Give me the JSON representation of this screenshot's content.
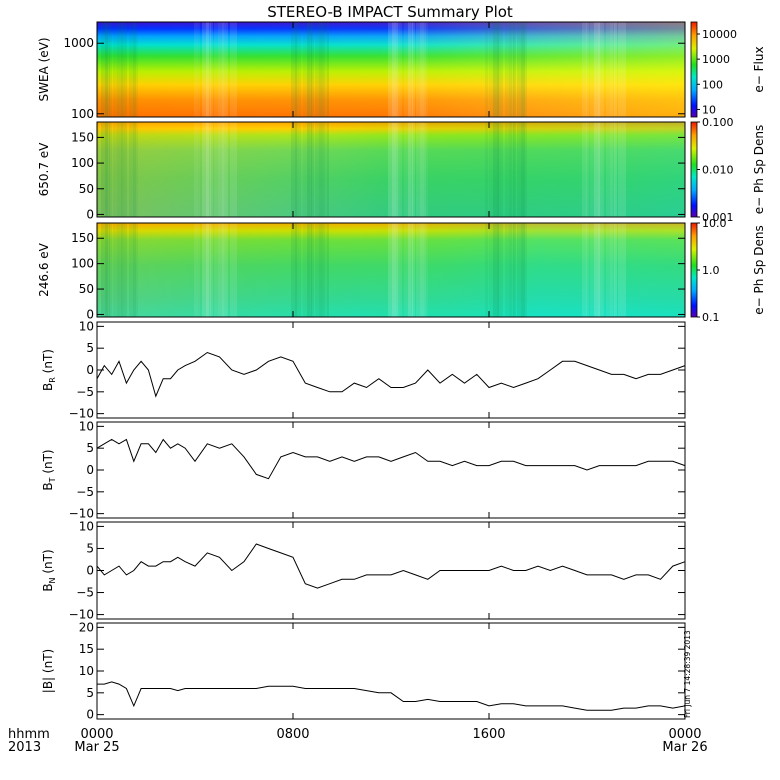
{
  "title": "STEREO-B IMPACT Summary Plot",
  "timestamp": "Fri Jun  7 14:28:39 2013",
  "x_axis": {
    "row1_label": "hhmm",
    "row2_label": "2013",
    "ticks": [
      {
        "hour": 0,
        "label": "0000",
        "date": "Mar 25"
      },
      {
        "hour": 8,
        "label": "0800",
        "date": ""
      },
      {
        "hour": 16,
        "label": "1600",
        "date": ""
      },
      {
        "hour": 24,
        "label": "0000",
        "date": "Mar 26"
      }
    ],
    "range_hours": [
      0,
      24
    ]
  },
  "chart_data": [
    {
      "type": "heatmap",
      "id": "swea",
      "ylabel": "SWEA (eV)",
      "yscale": "log",
      "ylim": [
        90,
        2000
      ],
      "yticks": [
        {
          "v": 100,
          "label": "100"
        },
        {
          "v": 1000,
          "label": "1000"
        }
      ],
      "colorbar": {
        "label": "e− Flux",
        "scale": "log",
        "range": [
          5,
          30000
        ],
        "ticks": [
          {
            "v": 10,
            "label": "10"
          },
          {
            "v": 100,
            "label": "100"
          },
          {
            "v": 1000,
            "label": "1000"
          },
          {
            "v": 10000,
            "label": "10000"
          }
        ]
      }
    },
    {
      "type": "heatmap",
      "id": "pad650",
      "ylabel": "650.7 eV",
      "ylim": [
        -5,
        180
      ],
      "yticks": [
        {
          "v": 0,
          "label": "0"
        },
        {
          "v": 50,
          "label": "50"
        },
        {
          "v": 100,
          "label": "100"
        },
        {
          "v": 150,
          "label": "150"
        }
      ],
      "colorbar": {
        "label": "e− Ph Sp Dens",
        "scale": "log",
        "range": [
          0.001,
          0.1
        ],
        "ticks": [
          {
            "v": 0.001,
            "label": "0.001"
          },
          {
            "v": 0.01,
            "label": "0.010"
          },
          {
            "v": 0.1,
            "label": "0.100"
          }
        ]
      }
    },
    {
      "type": "heatmap",
      "id": "pad246",
      "ylabel": "246.6 eV",
      "ylim": [
        -5,
        180
      ],
      "yticks": [
        {
          "v": 0,
          "label": "0"
        },
        {
          "v": 50,
          "label": "50"
        },
        {
          "v": 100,
          "label": "100"
        },
        {
          "v": 150,
          "label": "150"
        }
      ],
      "colorbar": {
        "label": "e− Ph Sp Dens",
        "scale": "log",
        "range": [
          0.1,
          10
        ],
        "ticks": [
          {
            "v": 0.1,
            "label": "0.1"
          },
          {
            "v": 1,
            "label": "1.0"
          },
          {
            "v": 10,
            "label": "10.0"
          }
        ]
      }
    },
    {
      "type": "line",
      "id": "br",
      "ylabel_main": "B",
      "ylabel_sub": "R",
      "ylabel_unit": "(nT)",
      "ylim": [
        -11,
        11
      ],
      "yticks": [
        {
          "v": -10,
          "label": "−10"
        },
        {
          "v": -5,
          "label": "−5"
        },
        {
          "v": 0,
          "label": "0"
        },
        {
          "v": 5,
          "label": "5"
        },
        {
          "v": 10,
          "label": "10"
        }
      ],
      "x": [
        0,
        0.3,
        0.6,
        0.9,
        1.2,
        1.5,
        1.8,
        2.1,
        2.4,
        2.7,
        3,
        3.3,
        3.6,
        4,
        4.5,
        5,
        5.5,
        6,
        6.5,
        7,
        7.5,
        8,
        8.5,
        9,
        9.5,
        10,
        10.5,
        11,
        11.5,
        12,
        12.5,
        13,
        13.5,
        14,
        14.5,
        15,
        15.5,
        16,
        16.5,
        17,
        17.5,
        18,
        18.5,
        19,
        19.5,
        20,
        20.5,
        21,
        21.5,
        22,
        22.5,
        23,
        23.5,
        24
      ],
      "y": [
        -2,
        1,
        -1,
        2,
        -3,
        0,
        2,
        0,
        -6,
        -2,
        -2,
        0,
        1,
        2,
        4,
        3,
        0,
        -1,
        0,
        2,
        3,
        2,
        -3,
        -4,
        -5,
        -5,
        -3,
        -4,
        -2,
        -4,
        -4,
        -3,
        0,
        -3,
        -1,
        -3,
        -1,
        -4,
        -3,
        -4,
        -3,
        -2,
        0,
        2,
        2,
        1,
        0,
        -1,
        -1,
        -2,
        -1,
        -1,
        0,
        1
      ]
    },
    {
      "type": "line",
      "id": "bt",
      "ylabel_main": "B",
      "ylabel_sub": "T",
      "ylabel_unit": "(nT)",
      "ylim": [
        -11,
        11
      ],
      "yticks": [
        {
          "v": -10,
          "label": "−10"
        },
        {
          "v": -5,
          "label": "−5"
        },
        {
          "v": 0,
          "label": "0"
        },
        {
          "v": 5,
          "label": "5"
        },
        {
          "v": 10,
          "label": "10"
        }
      ],
      "x": [
        0,
        0.3,
        0.6,
        0.9,
        1.2,
        1.5,
        1.8,
        2.1,
        2.4,
        2.7,
        3,
        3.3,
        3.6,
        4,
        4.5,
        5,
        5.5,
        6,
        6.5,
        7,
        7.5,
        8,
        8.5,
        9,
        9.5,
        10,
        10.5,
        11,
        11.5,
        12,
        12.5,
        13,
        13.5,
        14,
        14.5,
        15,
        15.5,
        16,
        16.5,
        17,
        17.5,
        18,
        18.5,
        19,
        19.5,
        20,
        20.5,
        21,
        21.5,
        22,
        22.5,
        23,
        23.5,
        24
      ],
      "y": [
        5,
        6,
        7,
        6,
        7,
        2,
        6,
        6,
        4,
        7,
        5,
        6,
        5,
        2,
        6,
        5,
        6,
        3,
        -1,
        -2,
        3,
        4,
        3,
        3,
        2,
        3,
        2,
        3,
        3,
        2,
        3,
        4,
        2,
        2,
        1,
        2,
        1,
        1,
        2,
        2,
        1,
        1,
        1,
        1,
        1,
        0,
        1,
        1,
        1,
        1,
        2,
        2,
        2,
        1
      ]
    },
    {
      "type": "line",
      "id": "bn",
      "ylabel_main": "B",
      "ylabel_sub": "N",
      "ylabel_unit": "(nT)",
      "ylim": [
        -11,
        11
      ],
      "yticks": [
        {
          "v": -10,
          "label": "−10"
        },
        {
          "v": -5,
          "label": "−5"
        },
        {
          "v": 0,
          "label": "0"
        },
        {
          "v": 5,
          "label": "5"
        },
        {
          "v": 10,
          "label": "10"
        }
      ],
      "x": [
        0,
        0.3,
        0.6,
        0.9,
        1.2,
        1.5,
        1.8,
        2.1,
        2.4,
        2.7,
        3,
        3.3,
        3.6,
        4,
        4.5,
        5,
        5.5,
        6,
        6.5,
        7,
        7.5,
        8,
        8.5,
        9,
        9.5,
        10,
        10.5,
        11,
        11.5,
        12,
        12.5,
        13,
        13.5,
        14,
        14.5,
        15,
        15.5,
        16,
        16.5,
        17,
        17.5,
        18,
        18.5,
        19,
        19.5,
        20,
        20.5,
        21,
        21.5,
        22,
        22.5,
        23,
        23.5,
        24
      ],
      "y": [
        1,
        -1,
        0,
        1,
        -1,
        0,
        2,
        1,
        1,
        2,
        2,
        3,
        2,
        1,
        4,
        3,
        0,
        2,
        6,
        5,
        4,
        3,
        -3,
        -4,
        -3,
        -2,
        -2,
        -1,
        -1,
        -1,
        0,
        -1,
        -2,
        0,
        0,
        0,
        0,
        0,
        1,
        0,
        0,
        1,
        0,
        1,
        0,
        -1,
        -1,
        -1,
        -2,
        -1,
        -1,
        -2,
        1,
        2
      ]
    },
    {
      "type": "line",
      "id": "bmag",
      "ylabel_main": "|B|",
      "ylabel_sub": "",
      "ylabel_unit": "(nT)",
      "ylim": [
        -1,
        21
      ],
      "yticks": [
        {
          "v": 0,
          "label": "0"
        },
        {
          "v": 5,
          "label": "5"
        },
        {
          "v": 10,
          "label": "10"
        },
        {
          "v": 15,
          "label": "15"
        },
        {
          "v": 20,
          "label": "20"
        }
      ],
      "x": [
        0,
        0.3,
        0.6,
        0.9,
        1.2,
        1.5,
        1.8,
        2.1,
        2.4,
        2.7,
        3,
        3.3,
        3.6,
        4,
        4.5,
        5,
        5.5,
        6,
        6.5,
        7,
        7.5,
        8,
        8.5,
        9,
        9.5,
        10,
        10.5,
        11,
        11.5,
        12,
        12.5,
        13,
        13.5,
        14,
        14.5,
        15,
        15.5,
        16,
        16.5,
        17,
        17.5,
        18,
        18.5,
        19,
        19.5,
        20,
        20.5,
        21,
        21.5,
        22,
        22.5,
        23,
        23.5,
        24
      ],
      "y": [
        7,
        7,
        7.5,
        7,
        6,
        2,
        6,
        6,
        6,
        6,
        6,
        5.5,
        6,
        6,
        6,
        6,
        6,
        6,
        6,
        6.5,
        6.5,
        6.5,
        6,
        6,
        6,
        6,
        6,
        5.5,
        5,
        5,
        3,
        3,
        3.5,
        3,
        3,
        3,
        3,
        2,
        2.5,
        2.5,
        2,
        2,
        2,
        2,
        1.5,
        1,
        1,
        1,
        1.5,
        1.5,
        2,
        2,
        1.5,
        2
      ]
    }
  ]
}
